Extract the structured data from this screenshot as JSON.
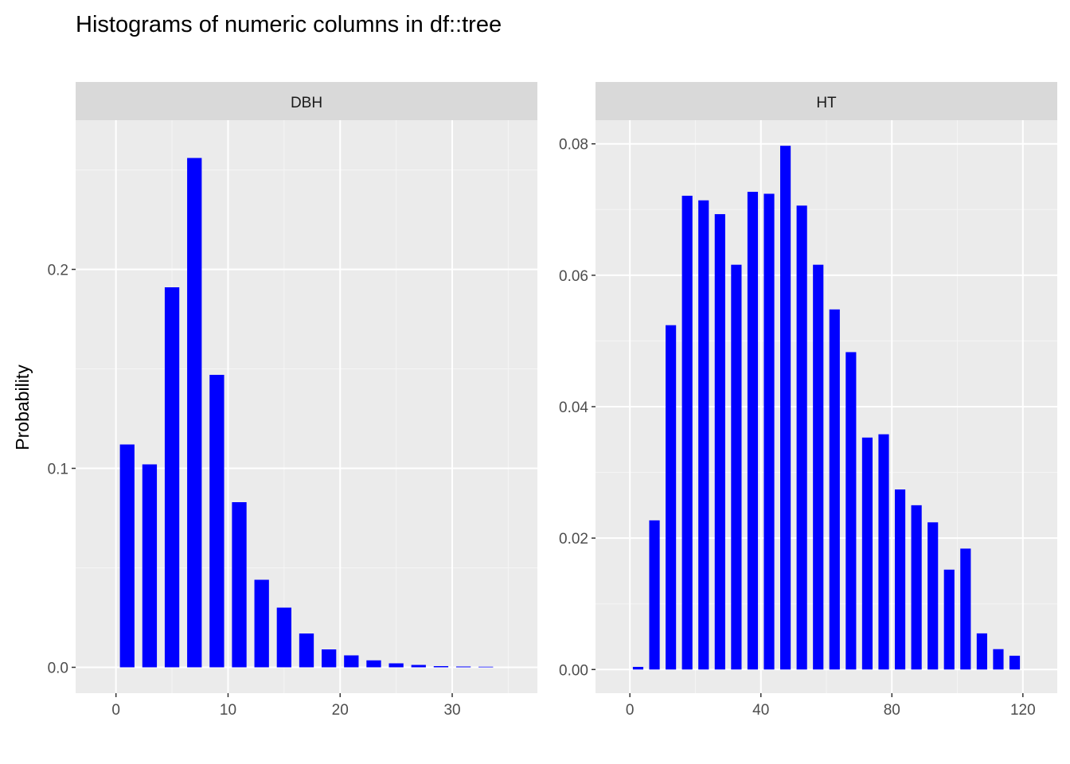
{
  "title": "Histograms of numeric columns in df::tree",
  "ylabel": "Probability",
  "colors": {
    "bar": "#0000ff",
    "panel_background": "#ebebeb",
    "strip_background": "#d9d9d9",
    "grid_major": "#ffffff",
    "grid_minor": "#f5f5f5",
    "tick": "#333333"
  },
  "chart_data": [
    {
      "type": "bar",
      "facet": "DBH",
      "xlim": [
        -3.6,
        37.6
      ],
      "ylim": [
        -0.013,
        0.275
      ],
      "x_ticks": [
        0,
        10,
        20,
        30
      ],
      "x_tick_labels": [
        "0",
        "10",
        "20",
        "30"
      ],
      "y_ticks": [
        0.0,
        0.1,
        0.2
      ],
      "y_tick_labels": [
        "0.0",
        "0.1",
        "0.2"
      ],
      "bar_width": 1.3,
      "x": [
        1,
        3,
        5,
        7,
        9,
        11,
        13,
        15,
        17,
        19,
        21,
        23,
        25,
        27,
        29,
        31,
        33
      ],
      "values": [
        0.112,
        0.102,
        0.191,
        0.256,
        0.147,
        0.083,
        0.044,
        0.03,
        0.017,
        0.009,
        0.006,
        0.0035,
        0.002,
        0.0012,
        0.0006,
        0.0004,
        0.0003
      ]
    },
    {
      "type": "bar",
      "facet": "HT",
      "xlim": [
        -10.5,
        130.5
      ],
      "ylim": [
        -0.0036,
        0.0836
      ],
      "x_ticks": [
        0,
        40,
        80,
        120
      ],
      "x_tick_labels": [
        "0",
        "40",
        "80",
        "120"
      ],
      "y_ticks": [
        0.0,
        0.02,
        0.04,
        0.06,
        0.08
      ],
      "y_tick_labels": [
        "0.00",
        "0.02",
        "0.04",
        "0.06",
        "0.08"
      ],
      "bar_width": 3.2,
      "x": [
        2.5,
        7.5,
        12.5,
        17.5,
        22.5,
        27.5,
        32.5,
        37.5,
        42.5,
        47.5,
        52.5,
        57.5,
        62.5,
        67.5,
        72.5,
        77.5,
        82.5,
        87.5,
        92.5,
        97.5,
        102.5,
        107.5,
        112.5,
        117.5
      ],
      "values": [
        0.0004,
        0.0227,
        0.0524,
        0.0721,
        0.0714,
        0.0693,
        0.0616,
        0.0727,
        0.0724,
        0.0797,
        0.0706,
        0.0616,
        0.0548,
        0.0483,
        0.0353,
        0.0358,
        0.0274,
        0.025,
        0.0224,
        0.0152,
        0.0184,
        0.0055,
        0.0031,
        0.0021
      ]
    }
  ]
}
